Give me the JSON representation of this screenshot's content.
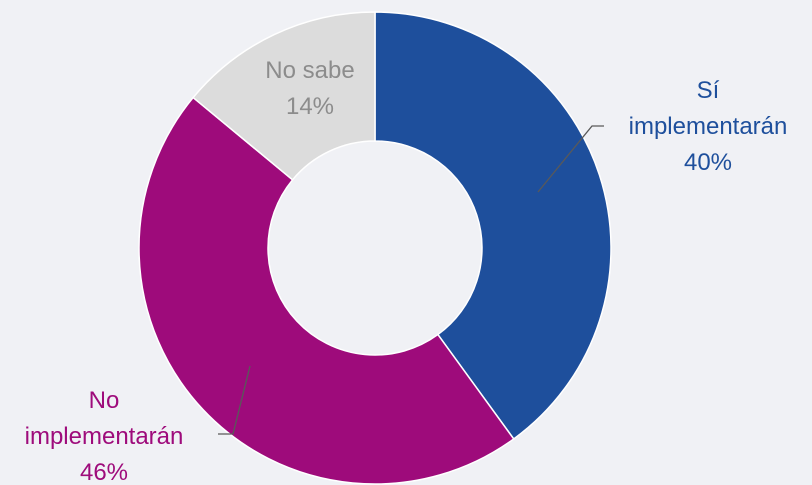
{
  "chart_data": {
    "type": "pie",
    "variant": "donut",
    "slices": [
      {
        "name_lines": [
          "Sí",
          "implementarán"
        ],
        "value": 40,
        "value_label": "40%",
        "color": "#1e4f9c"
      },
      {
        "name_lines": [
          "No",
          "implementarán"
        ],
        "value": 46,
        "value_label": "46%",
        "color": "#9e0b7b"
      },
      {
        "name_lines": [
          "No sabe"
        ],
        "value": 14,
        "value_label": "14%",
        "color": "#dcdcdc"
      }
    ],
    "label_colors": [
      "#1e4f9c",
      "#9e0b7b",
      "#8c8c8c"
    ],
    "start_angle_deg": 0,
    "direction": "clockwise"
  }
}
